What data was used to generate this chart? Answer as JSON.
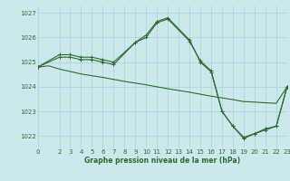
{
  "background_color": "#cce8ed",
  "grid_color": "#aad0d8",
  "line_color": "#2d6a2d",
  "xlabel": "Graphe pression niveau de la mer (hPa)",
  "ylim": [
    1021.5,
    1027.3
  ],
  "xlim": [
    0,
    23
  ],
  "yticks": [
    1022,
    1023,
    1024,
    1025,
    1026,
    1027
  ],
  "xticks": [
    0,
    2,
    3,
    4,
    5,
    6,
    7,
    8,
    9,
    10,
    11,
    12,
    13,
    14,
    15,
    16,
    17,
    18,
    19,
    20,
    21,
    22,
    23
  ],
  "line1_x": [
    0,
    2,
    3,
    4,
    5,
    6,
    7,
    9,
    10,
    11,
    12,
    14,
    15,
    16,
    17,
    18,
    19,
    20,
    21,
    22,
    23
  ],
  "line1_y": [
    1024.8,
    1025.2,
    1025.2,
    1025.1,
    1025.1,
    1025.0,
    1024.9,
    1025.8,
    1026.1,
    1026.65,
    1026.8,
    1025.9,
    1025.0,
    1024.6,
    1023.0,
    1022.4,
    1021.9,
    1022.1,
    1022.25,
    1022.4,
    1024.0
  ],
  "line2_x": [
    0,
    2,
    3,
    4,
    5,
    6,
    7,
    9,
    10,
    11,
    12,
    14,
    15,
    16,
    17,
    18,
    19,
    20,
    21,
    22,
    23
  ],
  "line2_y": [
    1024.8,
    1025.3,
    1025.3,
    1025.2,
    1025.2,
    1025.1,
    1025.0,
    1025.8,
    1026.0,
    1026.6,
    1026.75,
    1025.85,
    1025.05,
    1024.65,
    1023.0,
    1022.4,
    1021.95,
    1022.1,
    1022.3,
    1022.4,
    1024.0
  ],
  "line3_x": [
    0,
    1,
    2,
    3,
    4,
    5,
    6,
    7,
    8,
    9,
    10,
    11,
    12,
    13,
    14,
    15,
    16,
    17,
    18,
    19,
    20,
    21,
    22,
    23
  ],
  "line3_y": [
    1024.8,
    1024.85,
    1024.72,
    1024.62,
    1024.52,
    1024.45,
    1024.38,
    1024.3,
    1024.22,
    1024.15,
    1024.08,
    1024.0,
    1023.92,
    1023.85,
    1023.78,
    1023.7,
    1023.62,
    1023.55,
    1023.48,
    1023.4,
    1023.38,
    1023.35,
    1023.33,
    1024.0
  ]
}
